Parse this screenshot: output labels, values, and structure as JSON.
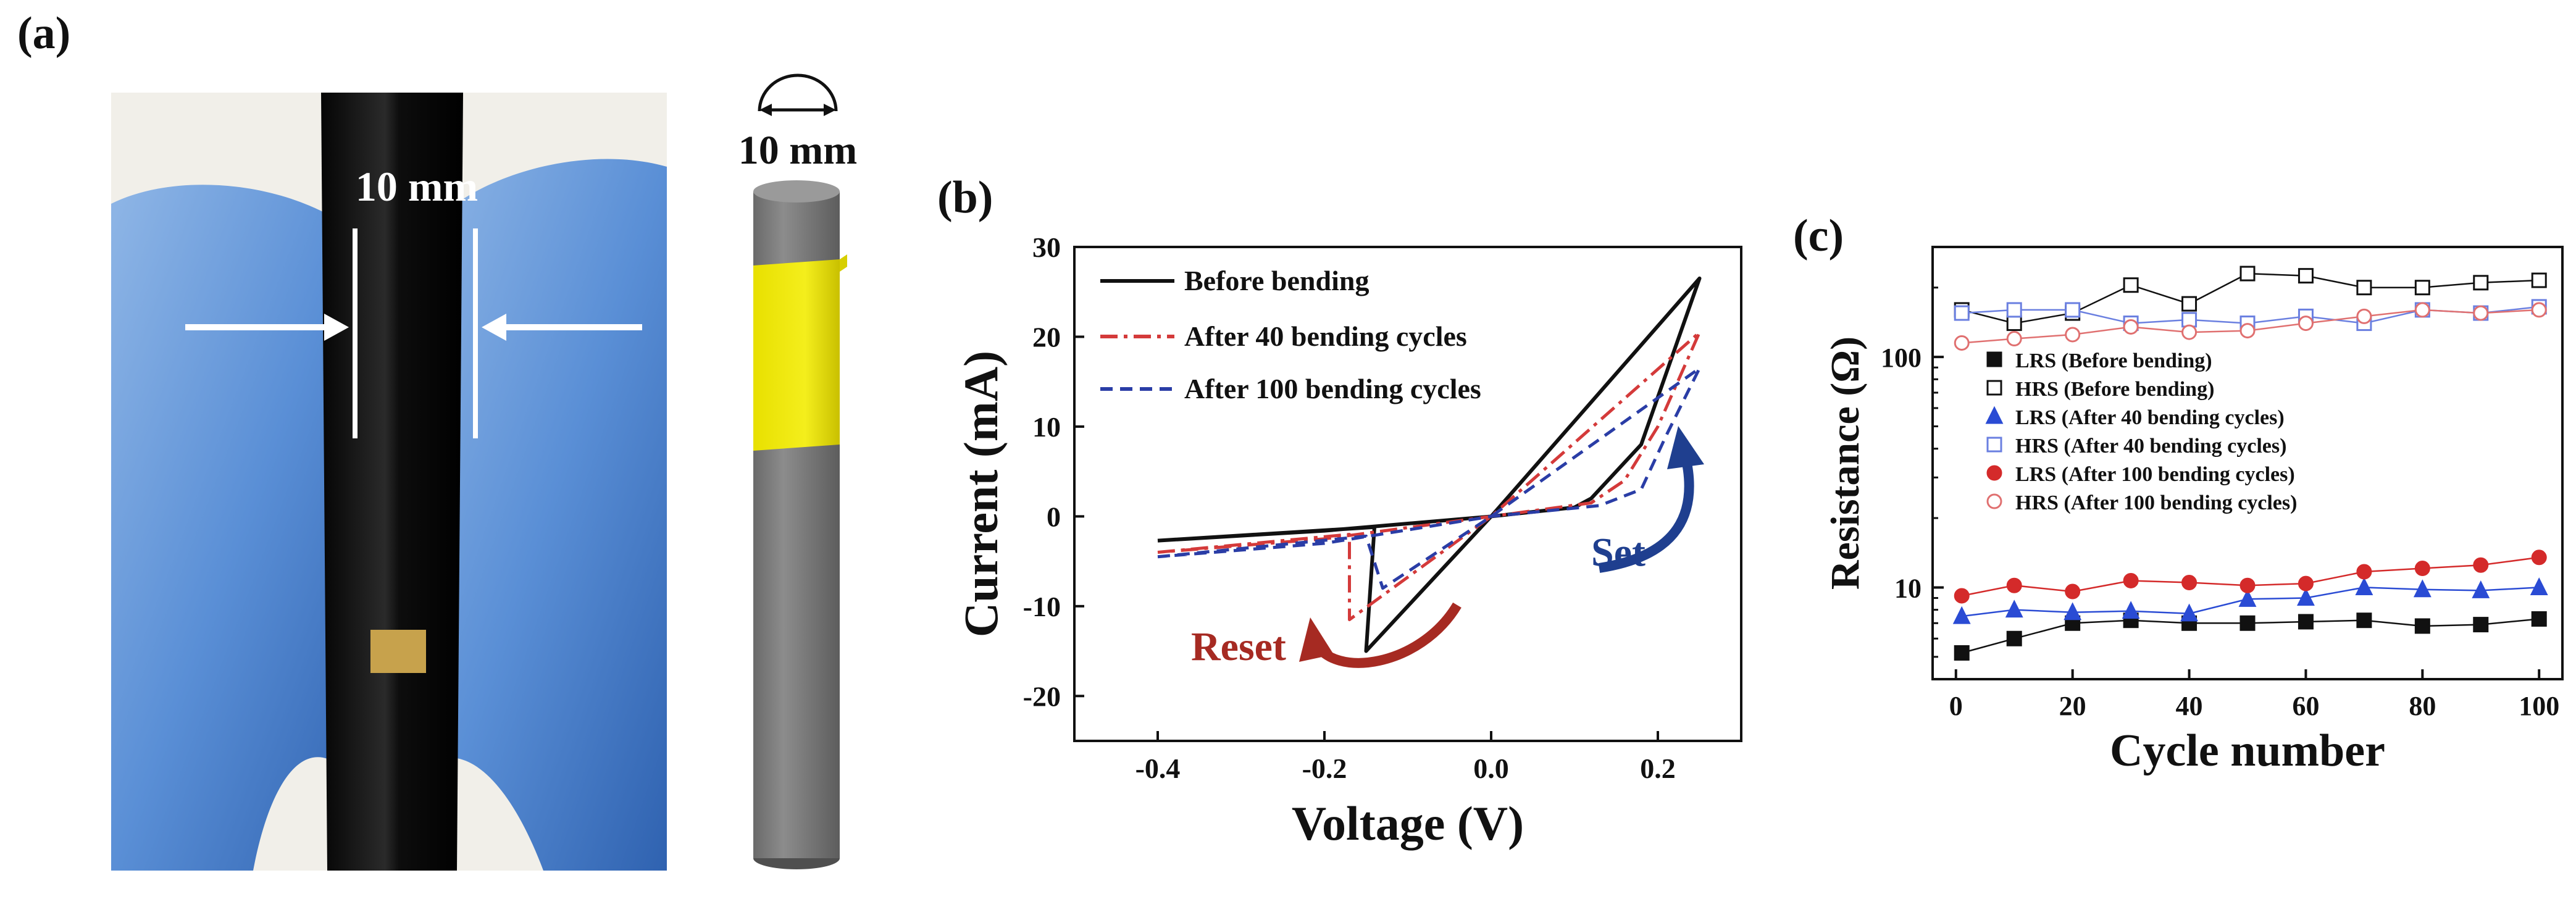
{
  "panel_labels": {
    "a": "(a)",
    "b": "(b)",
    "c": "(c)"
  },
  "photo": {
    "dimension_label": "10 mm"
  },
  "schematic": {
    "dimension_label": "10 mm"
  },
  "chart_data": [
    {
      "id": "b",
      "type": "line",
      "title": "",
      "xlabel": "Voltage (V)",
      "ylabel": "Current (mA)",
      "xlim": [
        -0.5,
        0.3
      ],
      "ylim": [
        -25,
        30
      ],
      "xticks": [
        -0.4,
        -0.2,
        0.0,
        0.2
      ],
      "xtick_labels": [
        "-0.4",
        "-0.2",
        "0.0",
        "0.2"
      ],
      "yticks": [
        -20,
        -10,
        0,
        10,
        20,
        30
      ],
      "ytick_labels": [
        "-20",
        "-10",
        "0",
        "10",
        "20",
        "30"
      ],
      "legend_position": "top-left",
      "annotations": [
        {
          "text": "Set",
          "color": "#1f3f8f",
          "x": 0.12,
          "y": -5.5
        },
        {
          "text": "Reset",
          "color": "#a62a22",
          "x": -0.36,
          "y": -16
        }
      ],
      "series": [
        {
          "name": "Before bending",
          "color": "#111111",
          "dash": "solid",
          "points": [
            [
              -0.4,
              -2.7
            ],
            [
              -0.14,
              -1.2
            ],
            [
              -0.15,
              -15
            ],
            [
              0,
              0
            ],
            [
              0.25,
              26.5
            ],
            [
              0.18,
              8
            ],
            [
              0.12,
              2
            ],
            [
              0.1,
              1
            ],
            [
              0,
              0
            ],
            [
              -0.2,
              -1.6
            ],
            [
              -0.4,
              -2.7
            ]
          ]
        },
        {
          "name": "After 40 bending cycles",
          "color": "#d43a3a",
          "dash": "dashdot",
          "points": [
            [
              -0.4,
              -4
            ],
            [
              -0.17,
              -2
            ],
            [
              -0.17,
              -11.5
            ],
            [
              0,
              0
            ],
            [
              0.25,
              20.5
            ],
            [
              0.2,
              10
            ],
            [
              0.16,
              4
            ],
            [
              0.12,
              1.5
            ],
            [
              0,
              0
            ],
            [
              -0.2,
              -2.5
            ],
            [
              -0.4,
              -4
            ]
          ]
        },
        {
          "name": "After 100 bending cycles",
          "color": "#2a3da6",
          "dash": "dashed",
          "points": [
            [
              -0.4,
              -4.5
            ],
            [
              -0.15,
              -2.2
            ],
            [
              -0.13,
              -8
            ],
            [
              0,
              0
            ],
            [
              0.25,
              16.5
            ],
            [
              0.21,
              9
            ],
            [
              0.18,
              3
            ],
            [
              0.13,
              1.2
            ],
            [
              0,
              0
            ],
            [
              -0.2,
              -3
            ],
            [
              -0.4,
              -4.5
            ]
          ]
        }
      ]
    },
    {
      "id": "c",
      "type": "scatter",
      "title": "",
      "xlabel": "Cycle number",
      "ylabel": "Resistance (Ω)",
      "xlim": [
        -4,
        104
      ],
      "ylim": [
        4,
        300
      ],
      "yscale": "log",
      "xticks": [
        0,
        20,
        40,
        60,
        80,
        100
      ],
      "xtick_labels": [
        "0",
        "20",
        "40",
        "60",
        "80",
        "100"
      ],
      "yticks": [
        10,
        100
      ],
      "ytick_labels": [
        "10",
        "100"
      ],
      "legend_position": "center-left",
      "x": [
        1,
        10,
        20,
        30,
        40,
        50,
        60,
        70,
        80,
        90,
        100
      ],
      "series": [
        {
          "name": "LRS (Before bending)",
          "color": "#111111",
          "marker": "square-filled",
          "values": [
            5.2,
            6.0,
            7.0,
            7.2,
            7.0,
            7.0,
            7.1,
            7.2,
            6.8,
            6.9,
            7.3
          ]
        },
        {
          "name": "HRS (Before bending)",
          "color": "#111111",
          "marker": "square-open",
          "values": [
            160,
            140,
            155,
            205,
            170,
            230,
            225,
            200,
            200,
            210,
            215
          ]
        },
        {
          "name": "LRS (After 40 bending cycles)",
          "color": "#2a4bd4",
          "marker": "triangle-filled",
          "values": [
            7.5,
            8.0,
            7.8,
            7.9,
            7.7,
            8.9,
            9.0,
            10.0,
            9.8,
            9.7,
            10.0
          ]
        },
        {
          "name": "HRS (After 40 bending cycles)",
          "color": "#6a7fe0",
          "marker": "square-open",
          "values": [
            155,
            160,
            160,
            140,
            145,
            140,
            150,
            140,
            160,
            155,
            165
          ]
        },
        {
          "name": "LRS (After 100 bending cycles)",
          "color": "#d42a2a",
          "marker": "circle-filled",
          "values": [
            9.2,
            10.2,
            9.6,
            10.7,
            10.5,
            10.2,
            10.4,
            11.7,
            12.1,
            12.5,
            13.5
          ]
        },
        {
          "name": "HRS (After 100 bending cycles)",
          "color": "#e07070",
          "marker": "circle-open",
          "values": [
            115,
            120,
            125,
            135,
            128,
            130,
            140,
            150,
            160,
            155,
            160
          ]
        }
      ]
    }
  ]
}
